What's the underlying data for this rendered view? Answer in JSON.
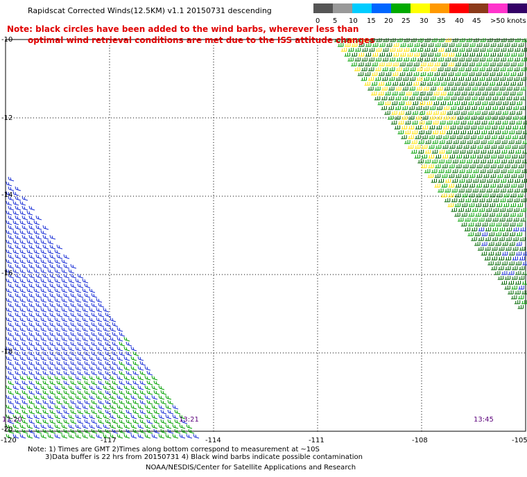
{
  "header": {
    "title": "Rapidscat Corrected Winds(12.5KM) v1.1 20150731 descending",
    "note_line1": "Note: black circles have been added to the wind barbs, wherever less than",
    "note_line2": "optimal wind retrieval conditions are met due to the ISS attitude changes"
  },
  "legend": {
    "unit": "knots",
    "labels": [
      "0",
      "5",
      "10",
      "15",
      "20",
      "25",
      "30",
      "35",
      "40",
      "45",
      ">50 knots"
    ],
    "colors": [
      "#555555",
      "#999999",
      "#00ccff",
      "#0066ff",
      "#00aa00",
      "#ffff00",
      "#ff9900",
      "#ff0000",
      "#ff33cc",
      "#aa00ff",
      "#330066"
    ]
  },
  "map": {
    "lat_labels": [
      "-10",
      "-12",
      "-14",
      "-16",
      "-18",
      "-20"
    ],
    "lon_labels": [
      "-120",
      "-117",
      "-114",
      "-111",
      "-108",
      "-105"
    ],
    "time_stamps": [
      "13:20",
      "13:21",
      "13:45"
    ],
    "barb_colors": {
      "blue": "#1a2fd6",
      "green": "#00a000",
      "yellow": "#ffe000",
      "darkgreen": "#006600",
      "black": "#000000"
    }
  },
  "footer": {
    "line1": "Note: 1) Times are GMT 2)Times along bottom correspond to measurement at ~10S",
    "line2": "3)Data buffer is 22 hrs from 20150731 4) Black wind barbs indicate possible contamination",
    "line3": "NOAA/NESDIS/Center for Satellite Applications and Research"
  }
}
